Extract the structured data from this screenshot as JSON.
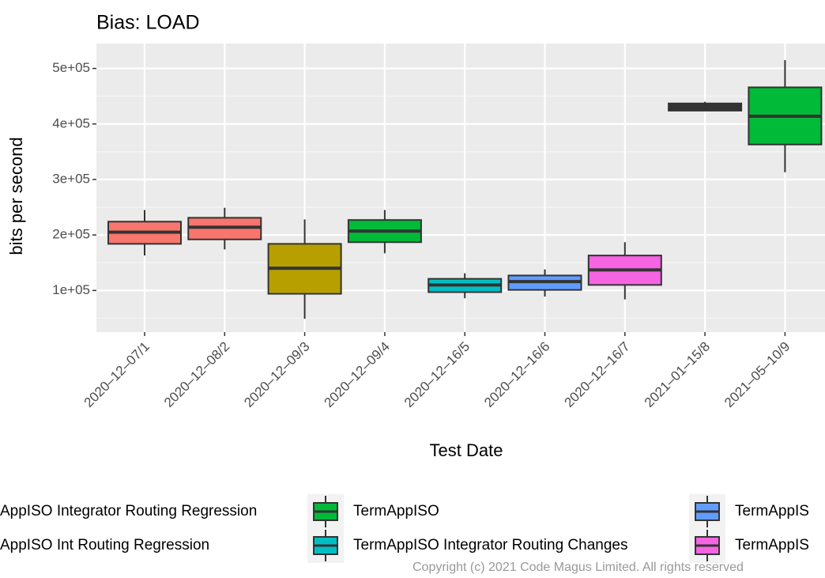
{
  "chart_data": {
    "type": "boxplot",
    "title": "Bias: LOAD",
    "xlabel": "Test Date",
    "ylabel": "bits per second",
    "categories": [
      "2020‒12‒07/1",
      "2020‒12‒08/2",
      "2020‒12‒09/3",
      "2020‒12‒09/4",
      "2020‒12‒16/5",
      "2020‒12‒16/6",
      "2020‒12‒16/7",
      "2021‒01‒15/8",
      "2021‒05‒10/9"
    ],
    "boxes": [
      {
        "min": 163000,
        "q1": 184000,
        "median": 205000,
        "q3": 224000,
        "max": 245000,
        "color": "#F8766D"
      },
      {
        "min": 174000,
        "q1": 192000,
        "median": 214000,
        "q3": 231000,
        "max": 249000,
        "color": "#F8766D"
      },
      {
        "min": 49000,
        "q1": 94000,
        "median": 140000,
        "q3": 184000,
        "max": 228000,
        "color": "#B79F00"
      },
      {
        "min": 167000,
        "q1": 187000,
        "median": 207000,
        "q3": 227000,
        "max": 245000,
        "color": "#00BA38"
      },
      {
        "min": 86000,
        "q1": 97000,
        "median": 110000,
        "q3": 121000,
        "max": 131000,
        "color": "#00BFC4"
      },
      {
        "min": 89000,
        "q1": 101000,
        "median": 116000,
        "q3": 127000,
        "max": 138000,
        "color": "#619CFF"
      },
      {
        "min": 84000,
        "q1": 110000,
        "median": 137000,
        "q3": 163000,
        "max": 187000,
        "color": "#F564E3"
      },
      {
        "min": 423000,
        "q1": 424000,
        "median": 431000,
        "q3": 437000,
        "max": 440000,
        "color": "#333333"
      },
      {
        "min": 313000,
        "q1": 363000,
        "median": 414000,
        "q3": 466000,
        "max": 515000,
        "color": "#00BA38"
      }
    ],
    "ylim": [
      25000,
      545000
    ],
    "yticks": [
      {
        "value": 100000,
        "label": "1e+05"
      },
      {
        "value": 200000,
        "label": "2e+05"
      },
      {
        "value": 300000,
        "label": "3e+05"
      },
      {
        "value": 400000,
        "label": "4e+05"
      },
      {
        "value": 500000,
        "label": "5e+05"
      }
    ],
    "yminor": [
      50000,
      150000,
      250000,
      350000,
      450000
    ],
    "grid": true,
    "legend": [
      {
        "label": "AppISO Integrator Routing Regression"
      },
      {
        "label": "AppISO Int Routing Regression"
      },
      {
        "label": "TermAppISO",
        "color": "#00BA38"
      },
      {
        "label": "TermAppISO Integrator Routing Changes",
        "color": "#00BFC4"
      },
      {
        "label": "TermAppIS",
        "color": "#619CFF"
      },
      {
        "label": "TermAppIS",
        "color": "#F564E3"
      }
    ],
    "caption": "Copyright (c) 2021 Code Magus Limited. All rights reserved"
  }
}
